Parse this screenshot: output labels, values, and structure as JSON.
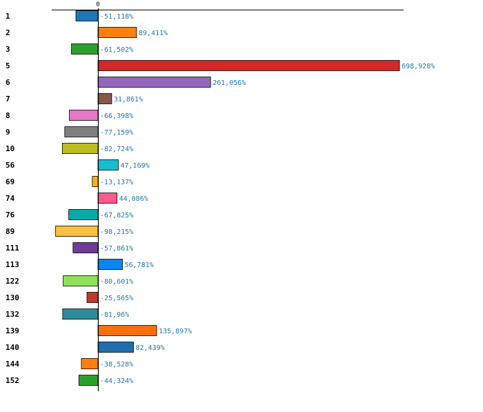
{
  "chart_data": {
    "type": "bar",
    "orientation": "horizontal",
    "categories": [
      "1",
      "2",
      "3",
      "5",
      "6",
      "7",
      "8",
      "9",
      "10",
      "56",
      "69",
      "74",
      "76",
      "89",
      "111",
      "113",
      "122",
      "130",
      "132",
      "139",
      "140",
      "144",
      "152"
    ],
    "values": [
      -51.118,
      89.411,
      -61.502,
      698.928,
      261.056,
      31.861,
      -66.398,
      -77.159,
      -82.724,
      47.169,
      -13.137,
      44.086,
      -67.825,
      -98.215,
      -57.861,
      56.781,
      -80.601,
      -25.565,
      -81.96,
      135.897,
      82.439,
      -38.528,
      -44.324
    ],
    "value_labels": [
      "-51,118%",
      "89,411%",
      "-61,502%",
      "698,928%",
      "261,056%",
      "31,861%",
      "-66,398%",
      "-77,159%",
      "-82,724%",
      "47,169%",
      "-13,137%",
      "44,086%",
      "-67,825%",
      "-98,215%",
      "-57,861%",
      "56,781%",
      "-80,601%",
      "-25,565%",
      "-81,96%",
      "135,897%",
      "82,439%",
      "-38,528%",
      "-44,324%"
    ],
    "colors": [
      "#1f77b4",
      "#ff7f0e",
      "#2ca02c",
      "#d62728",
      "#9467bd",
      "#8c564b",
      "#e377c2",
      "#7f7f7f",
      "#bcbd22",
      "#17becf",
      "#f2b701",
      "#ff5a8c",
      "#0aa8a8",
      "#fbc03d",
      "#6f3b96",
      "#0a84ff",
      "#8fe05a",
      "#c0392b",
      "#2e8b9a",
      "#ff6f0a",
      "#1f6fb0",
      "#ff7f0e",
      "#2ca02c"
    ],
    "tick_zero_label": "0",
    "title": "",
    "xlabel": "",
    "ylabel": "",
    "grid": false
  }
}
